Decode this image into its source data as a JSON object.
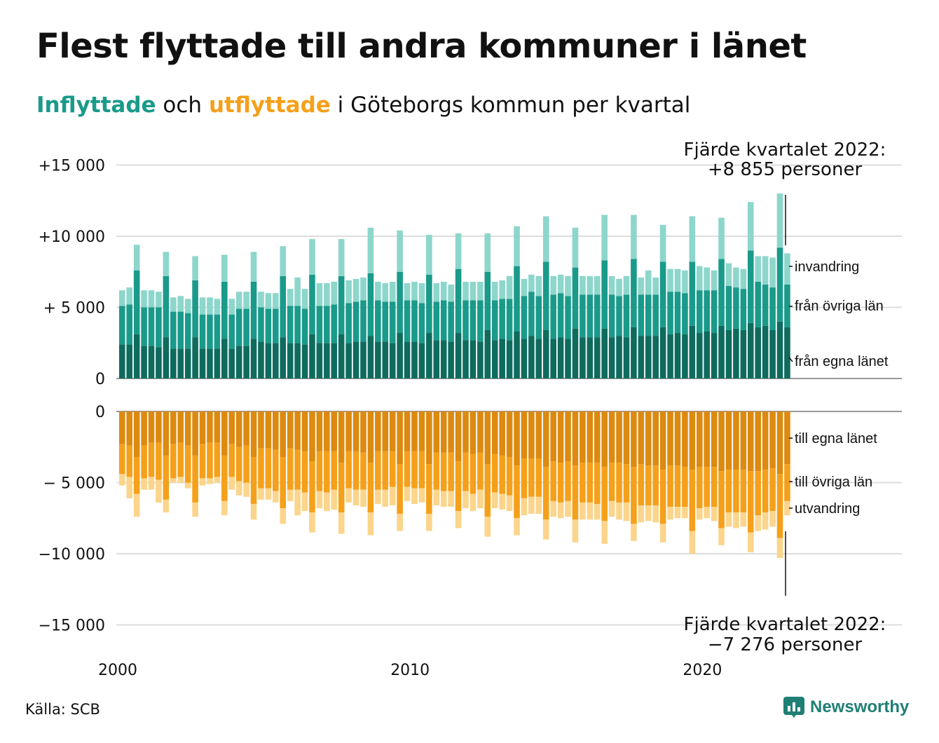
{
  "title": "Flest flyttade till andra kommuner i länet",
  "subtitle": {
    "in_word": "Inflyttade",
    "and_word": "och",
    "out_word": "utflyttade",
    "rest": "i Göteborgs kommun per kvartal"
  },
  "source": "Källa: SCB",
  "brand": {
    "name": "Newsworthy",
    "icon": "newsworthy-logo-icon",
    "color": "#1f7f74"
  },
  "colors": {
    "in_own": "#0e6b5e",
    "in_other": "#1a9a8a",
    "in_abroad": "#8dd6cb",
    "out_own": "#dc8a10",
    "out_other": "#f5a01a",
    "out_abroad": "#fbd58c",
    "grid": "#dddddd"
  },
  "chart_data": [
    {
      "type": "bar",
      "stacked": true,
      "ylim": [
        0,
        15000
      ],
      "yticks": [
        {
          "value": 15000,
          "label": "+15 000"
        },
        {
          "value": 10000,
          "label": "+10 000"
        },
        {
          "value": 5000,
          "label": "+ 5 000"
        },
        {
          "value": 0,
          "label": "0"
        }
      ],
      "x_range": [
        2000,
        2023
      ],
      "xticks": [
        "2000",
        "2010",
        "2020"
      ],
      "series_labels": [
        "från egna länet",
        "från övriga län",
        "invandring"
      ],
      "series": [
        {
          "name": "från egna länet",
          "values": [
            2400,
            2400,
            3100,
            2300,
            2300,
            2200,
            2900,
            2100,
            2100,
            2100,
            2900,
            2100,
            2100,
            2100,
            2800,
            2100,
            2300,
            2300,
            2800,
            2600,
            2500,
            2500,
            2900,
            2500,
            2500,
            2400,
            3100,
            2500,
            2500,
            2500,
            3100,
            2500,
            2600,
            2600,
            3000,
            2600,
            2600,
            2500,
            3200,
            2600,
            2600,
            2500,
            3200,
            2700,
            2700,
            2600,
            3200,
            2700,
            2700,
            2600,
            3400,
            2700,
            2800,
            2700,
            3300,
            2800,
            3000,
            2800,
            3400,
            2800,
            2900,
            2800,
            3500,
            2900,
            2900,
            2900,
            3500,
            2900,
            3000,
            2900,
            3600,
            3000,
            3000,
            3000,
            3600,
            3100,
            3200,
            3100,
            3700,
            3200,
            3300,
            3200,
            3700,
            3400,
            3500,
            3400,
            3900,
            3600,
            3700,
            3400,
            4000,
            3600
          ]
        },
        {
          "name": "från övriga län",
          "values": [
            2700,
            2800,
            4500,
            2700,
            2700,
            2800,
            4300,
            2600,
            2600,
            2500,
            4000,
            2400,
            2400,
            2400,
            4000,
            2400,
            2600,
            2600,
            4000,
            2400,
            2400,
            2400,
            4300,
            2600,
            2600,
            2500,
            4200,
            2600,
            2600,
            2700,
            4100,
            2800,
            2800,
            2900,
            4400,
            2900,
            2800,
            2900,
            4300,
            2900,
            2900,
            2800,
            4100,
            2700,
            2800,
            2800,
            4500,
            2800,
            2800,
            2900,
            4100,
            2800,
            2800,
            2900,
            4600,
            3000,
            3100,
            3000,
            4800,
            3100,
            3100,
            3000,
            4300,
            3000,
            3000,
            3000,
            4800,
            3000,
            2800,
            3000,
            4800,
            2900,
            2900,
            2900,
            4600,
            3000,
            2900,
            2900,
            4500,
            3000,
            2900,
            3000,
            4700,
            3100,
            2900,
            2900,
            5100,
            3200,
            2900,
            3000,
            5200,
            3000
          ]
        },
        {
          "name": "invandring",
          "values": [
            1100,
            1200,
            1800,
            1200,
            1200,
            1100,
            1700,
            1000,
            1100,
            1000,
            1700,
            1200,
            1200,
            1100,
            1900,
            1100,
            1200,
            1200,
            2100,
            1100,
            1100,
            1100,
            2100,
            1200,
            2000,
            1400,
            2500,
            1600,
            1600,
            1600,
            2600,
            1600,
            1600,
            1600,
            3200,
            1300,
            1300,
            1400,
            2900,
            1200,
            1300,
            1400,
            2800,
            1300,
            1300,
            1200,
            2500,
            1300,
            1300,
            1300,
            2700,
            1300,
            1300,
            1600,
            2800,
            1200,
            1200,
            1400,
            3200,
            1300,
            1300,
            1400,
            2800,
            1300,
            1300,
            1300,
            3200,
            1300,
            1200,
            1300,
            3100,
            1200,
            1700,
            1200,
            2600,
            1600,
            1600,
            1600,
            3200,
            1700,
            1600,
            1400,
            2900,
            1600,
            1400,
            1400,
            3400,
            1800,
            2000,
            2100,
            3800,
            2200
          ]
        }
      ]
    },
    {
      "type": "bar",
      "stacked": true,
      "ylim": [
        -15000,
        0
      ],
      "yticks": [
        {
          "value": 0,
          "label": "0"
        },
        {
          "value": -5000,
          "label": "− 5 000"
        },
        {
          "value": -10000,
          "label": "−10 000"
        },
        {
          "value": -15000,
          "label": "−15 000"
        }
      ],
      "x_range": [
        2000,
        2023
      ],
      "xticks": [
        "2000",
        "2010",
        "2020"
      ],
      "series_labels": [
        "till egna länet",
        "till övriga län",
        "utvandring"
      ],
      "series": [
        {
          "name": "till egna länet",
          "values": [
            -2300,
            -2400,
            -3200,
            -2400,
            -2200,
            -2200,
            -3100,
            -2300,
            -2200,
            -2400,
            -3100,
            -2300,
            -2200,
            -2200,
            -3100,
            -2300,
            -2500,
            -2400,
            -3200,
            -2600,
            -2600,
            -2700,
            -3200,
            -2600,
            -2700,
            -2800,
            -3500,
            -2800,
            -2800,
            -2800,
            -3600,
            -2800,
            -2800,
            -2900,
            -3600,
            -2800,
            -2800,
            -2800,
            -3700,
            -2800,
            -2800,
            -2800,
            -3700,
            -2900,
            -2900,
            -2900,
            -3500,
            -2900,
            -3000,
            -2900,
            -3700,
            -3000,
            -3100,
            -3200,
            -3800,
            -3300,
            -3300,
            -3300,
            -3900,
            -3500,
            -3600,
            -3500,
            -3800,
            -3600,
            -3600,
            -3600,
            -3900,
            -3600,
            -3600,
            -3700,
            -3900,
            -3700,
            -3800,
            -3800,
            -4100,
            -3800,
            -3800,
            -3900,
            -4100,
            -3900,
            -3900,
            -3900,
            -4200,
            -4100,
            -4100,
            -4100,
            -4200,
            -4200,
            -4100,
            -4000,
            -4400,
            -3700
          ]
        },
        {
          "name": "till övriga län",
          "values": [
            -2100,
            -2200,
            -2600,
            -2300,
            -2400,
            -2600,
            -3100,
            -2400,
            -2400,
            -2600,
            -3300,
            -2400,
            -2500,
            -2400,
            -3200,
            -2300,
            -2400,
            -2600,
            -3300,
            -2800,
            -2800,
            -2900,
            -3600,
            -2900,
            -2800,
            -2900,
            -3600,
            -2800,
            -2900,
            -2700,
            -3500,
            -2600,
            -2700,
            -2600,
            -3500,
            -2700,
            -2700,
            -2500,
            -3500,
            -2500,
            -2600,
            -2600,
            -3500,
            -2600,
            -2700,
            -2700,
            -3500,
            -2700,
            -2800,
            -2600,
            -3700,
            -2700,
            -2700,
            -2700,
            -3700,
            -2800,
            -2700,
            -2700,
            -3700,
            -2800,
            -2800,
            -2800,
            -3800,
            -2800,
            -2800,
            -2900,
            -3800,
            -2700,
            -2800,
            -2700,
            -4000,
            -2900,
            -2800,
            -2800,
            -3800,
            -2900,
            -2900,
            -2800,
            -4300,
            -2900,
            -2800,
            -2800,
            -4000,
            -3000,
            -3000,
            -3000,
            -4300,
            -3100,
            -3000,
            -3000,
            -4500,
            -2600
          ]
        },
        {
          "name": "utvandring",
          "values": [
            -800,
            -1500,
            -1600,
            -800,
            -900,
            -1600,
            -900,
            -300,
            -400,
            -400,
            -1000,
            -500,
            -400,
            -400,
            -1000,
            -900,
            -1000,
            -1000,
            -1100,
            -800,
            -800,
            -800,
            -1100,
            -800,
            -1800,
            -1300,
            -1400,
            -1200,
            -1300,
            -1400,
            -1500,
            -1000,
            -1100,
            -1200,
            -1600,
            -1000,
            -1200,
            -1300,
            -1200,
            -1000,
            -1100,
            -1000,
            -1200,
            -1100,
            -1100,
            -1100,
            -1200,
            -1200,
            -1200,
            -1300,
            -1400,
            -1100,
            -1100,
            -1100,
            -1200,
            -1200,
            -1200,
            -1200,
            -1400,
            -1100,
            -1100,
            -1100,
            -1600,
            -1200,
            -1200,
            -1100,
            -1600,
            -1100,
            -1200,
            -1300,
            -1200,
            -1200,
            -1100,
            -1200,
            -1300,
            -900,
            -800,
            -800,
            -1600,
            -800,
            -800,
            -1000,
            -1200,
            -1000,
            -1100,
            -1000,
            -1400,
            -1100,
            -1200,
            -1100,
            -1400,
            -1000
          ]
        }
      ],
      "annotations": [
        {
          "id": "top",
          "line1": "Fjärde kvartalet 2022:",
          "line2": "+8 855 personer"
        },
        {
          "id": "bottom",
          "line1": "Fjärde kvartalet 2022:",
          "line2": "−7 276 personer"
        }
      ]
    }
  ]
}
